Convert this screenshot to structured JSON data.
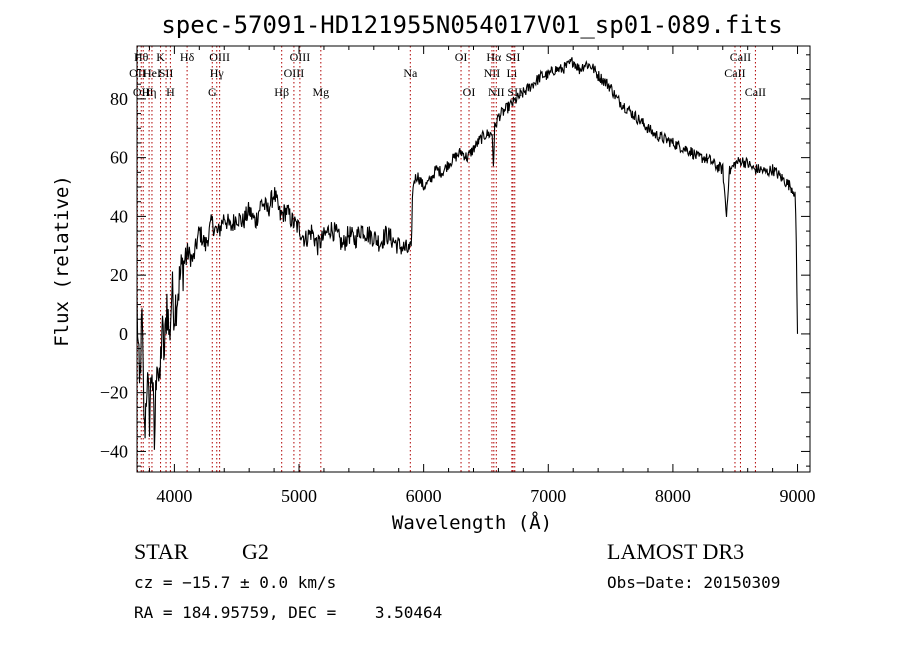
{
  "chart_data": {
    "type": "line",
    "title": "spec-57091-HD121955N054017V01_sp01-089.fits",
    "xlabel": "Wavelength (Å)",
    "ylabel": "Flux (relative)",
    "xlim": [
      3700,
      9100
    ],
    "ylim": [
      -47,
      98
    ],
    "xticks": [
      4000,
      5000,
      6000,
      7000,
      8000,
      9000
    ],
    "yticks": [
      -40,
      -20,
      0,
      20,
      40,
      60,
      80
    ],
    "grid": false,
    "series": [
      {
        "color": "#000000",
        "x": [
          3700,
          3720,
          3740,
          3760,
          3780,
          3800,
          3820,
          3840,
          3860,
          3880,
          3900,
          3920,
          3940,
          3960,
          3980,
          4000,
          4050,
          4100,
          4150,
          4200,
          4250,
          4300,
          4350,
          4400,
          4450,
          4500,
          4550,
          4600,
          4650,
          4700,
          4750,
          4800,
          4850,
          4900,
          4950,
          5000,
          5050,
          5100,
          5150,
          5200,
          5250,
          5300,
          5350,
          5400,
          5450,
          5500,
          5550,
          5600,
          5650,
          5700,
          5750,
          5800,
          5850,
          5900,
          5910,
          5920,
          5950,
          6000,
          6050,
          6100,
          6150,
          6200,
          6250,
          6300,
          6350,
          6400,
          6450,
          6500,
          6550,
          6560,
          6570,
          6600,
          6650,
          6700,
          6750,
          6800,
          6850,
          6900,
          6950,
          7000,
          7050,
          7100,
          7150,
          7200,
          7250,
          7300,
          7350,
          7400,
          7450,
          7500,
          7550,
          7600,
          7650,
          7700,
          7750,
          7800,
          7850,
          7900,
          7950,
          8000,
          8050,
          8100,
          8150,
          8200,
          8250,
          8300,
          8350,
          8400,
          8430,
          8450,
          8500,
          8550,
          8600,
          8650,
          8700,
          8750,
          8800,
          8850,
          8900,
          8950,
          8980,
          8990,
          9000
        ],
        "y": [
          10,
          -20,
          5,
          -35,
          -15,
          -28,
          -10,
          -38,
          -5,
          -20,
          2,
          -8,
          12,
          -2,
          15,
          8,
          20,
          28,
          25,
          35,
          30,
          38,
          34,
          40,
          36,
          40,
          38,
          42,
          38,
          45,
          42,
          48,
          40,
          42,
          38,
          36,
          32,
          35,
          30,
          33,
          36,
          34,
          30,
          34,
          32,
          36,
          34,
          33,
          31,
          34,
          32,
          30,
          29,
          28,
          46,
          52,
          54,
          50,
          52,
          56,
          55,
          58,
          60,
          62,
          60,
          63,
          66,
          68,
          68,
          58,
          70,
          74,
          76,
          78,
          80,
          82,
          84,
          86,
          88,
          88,
          90,
          90,
          91,
          93,
          90,
          92,
          91,
          88,
          86,
          84,
          80,
          78,
          76,
          74,
          72,
          70,
          68,
          67,
          66,
          65,
          64,
          63,
          62,
          60,
          60,
          59,
          57,
          56,
          40,
          55,
          58,
          59,
          58,
          56,
          56,
          55,
          56,
          54,
          52,
          50,
          48,
          30,
          0
        ]
      }
    ],
    "lines": [
      {
        "x": 3704,
        "label": "OII",
        "row": 2
      },
      {
        "x": 3734,
        "label": "Hθ",
        "row": 1
      },
      {
        "x": 3750,
        "label": "OIII",
        "row": 3
      },
      {
        "x": 3797,
        "label": "Hη",
        "row": 3
      },
      {
        "x": 3820,
        "label": "HeI",
        "row": 2
      },
      {
        "x": 3889,
        "label": "K",
        "row": 1
      },
      {
        "x": 3933,
        "label": "SII",
        "row": 2
      },
      {
        "x": 3968,
        "label": "H",
        "row": 3
      },
      {
        "x": 4102,
        "label": "Hδ",
        "row": 1
      },
      {
        "x": 4304,
        "label": "G",
        "row": 3
      },
      {
        "x": 4340,
        "label": "Hγ",
        "row": 2
      },
      {
        "x": 4363,
        "label": "OIII",
        "row": 1
      },
      {
        "x": 4861,
        "label": "Hβ",
        "row": 3
      },
      {
        "x": 4959,
        "label": "OIII",
        "row": 2
      },
      {
        "x": 5007,
        "label": "OIII",
        "row": 1
      },
      {
        "x": 5175,
        "label": "Mg",
        "row": 3
      },
      {
        "x": 5893,
        "label": "Na",
        "row": 2
      },
      {
        "x": 6300,
        "label": "OI",
        "row": 1
      },
      {
        "x": 6364,
        "label": "OI",
        "row": 3
      },
      {
        "x": 6548,
        "label": "NII",
        "row": 2
      },
      {
        "x": 6563,
        "label": "Hα",
        "row": 1
      },
      {
        "x": 6583,
        "label": "NII",
        "row": 3
      },
      {
        "x": 6708,
        "label": "Li",
        "row": 2
      },
      {
        "x": 6717,
        "label": "SII",
        "row": 1
      },
      {
        "x": 6731,
        "label": "SII",
        "row": 3
      },
      {
        "x": 8498,
        "label": "CaII",
        "row": 2
      },
      {
        "x": 8542,
        "label": "CaII",
        "row": 1
      },
      {
        "x": 8662,
        "label": "CaII",
        "row": 3
      }
    ]
  },
  "info": {
    "object_class": "STAR",
    "subclass": "G2",
    "survey": "LAMOST DR3",
    "cz": "cz = −15.7 ± 0.0 km/s",
    "obs_date": "Obs−Date: 20150309",
    "radec": "RA = 184.95759, DEC =    3.50464"
  }
}
